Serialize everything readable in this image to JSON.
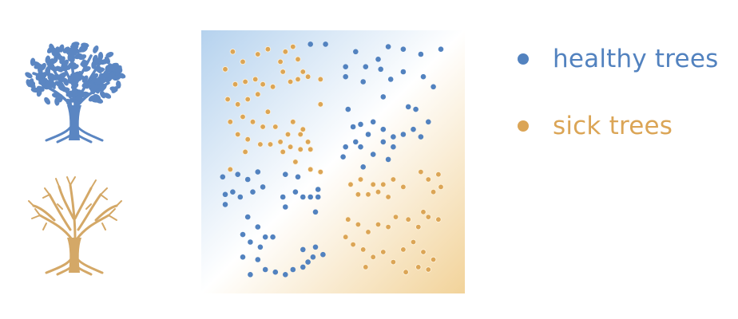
{
  "colors": {
    "healthy": "#5282bf",
    "sick": "#dba556",
    "healthy_tree": "#5b86c2",
    "sick_tree": "#d4a867",
    "bg_healthy": "#b5d2ee",
    "bg_sick": "#f2d39a"
  },
  "icons": {
    "healthy_tree": "leafy-tree-icon",
    "sick_tree": "bare-tree-icon"
  },
  "legend": [
    {
      "label": "healthy trees",
      "class": "healthy"
    },
    {
      "label": "sick trees",
      "class": "sick"
    }
  ],
  "chart_data": {
    "type": "scatter",
    "title": "",
    "xlabel": "",
    "ylabel": "",
    "xlim": [
      0,
      1
    ],
    "ylim": [
      0,
      1
    ],
    "grid": false,
    "legend_position": "right",
    "series": [
      {
        "name": "healthy trees",
        "points": [
          [
            0.41,
            0.97
          ],
          [
            0.47,
            0.97
          ],
          [
            0.55,
            0.88
          ],
          [
            0.59,
            0.94
          ],
          [
            0.62,
            0.82
          ],
          [
            0.68,
            0.91
          ],
          [
            0.72,
            0.96
          ],
          [
            0.78,
            0.95
          ],
          [
            0.85,
            0.93
          ],
          [
            0.93,
            0.95
          ],
          [
            0.55,
            0.84
          ],
          [
            0.63,
            0.88
          ],
          [
            0.69,
            0.87
          ],
          [
            0.73,
            0.83
          ],
          [
            0.78,
            0.86
          ],
          [
            0.86,
            0.84
          ],
          [
            0.9,
            0.8
          ],
          [
            0.7,
            0.76
          ],
          [
            0.8,
            0.72
          ],
          [
            0.83,
            0.71
          ],
          [
            0.56,
            0.71
          ],
          [
            0.58,
            0.64
          ],
          [
            0.61,
            0.65
          ],
          [
            0.64,
            0.61
          ],
          [
            0.66,
            0.66
          ],
          [
            0.7,
            0.63
          ],
          [
            0.74,
            0.6
          ],
          [
            0.78,
            0.61
          ],
          [
            0.82,
            0.63
          ],
          [
            0.88,
            0.66
          ],
          [
            0.55,
            0.56
          ],
          [
            0.61,
            0.56
          ],
          [
            0.66,
            0.53
          ],
          [
            0.7,
            0.58
          ],
          [
            0.74,
            0.56
          ],
          [
            0.85,
            0.6
          ],
          [
            0.54,
            0.52
          ],
          [
            0.62,
            0.48
          ],
          [
            0.59,
            0.58
          ],
          [
            0.72,
            0.51
          ],
          [
            0.06,
            0.44
          ],
          [
            0.1,
            0.38
          ],
          [
            0.12,
            0.45
          ],
          [
            0.16,
            0.43
          ],
          [
            0.2,
            0.46
          ],
          [
            0.07,
            0.37
          ],
          [
            0.13,
            0.36
          ],
          [
            0.18,
            0.38
          ],
          [
            0.22,
            0.4
          ],
          [
            0.07,
            0.33
          ],
          [
            0.31,
            0.45
          ],
          [
            0.35,
            0.38
          ],
          [
            0.38,
            0.36
          ],
          [
            0.3,
            0.36
          ],
          [
            0.41,
            0.36
          ],
          [
            0.44,
            0.36
          ],
          [
            0.44,
            0.39
          ],
          [
            0.36,
            0.44
          ],
          [
            0.31,
            0.32
          ],
          [
            0.43,
            0.3
          ],
          [
            0.16,
            0.28
          ],
          [
            0.2,
            0.24
          ],
          [
            0.14,
            0.21
          ],
          [
            0.23,
            0.2
          ],
          [
            0.17,
            0.18
          ],
          [
            0.21,
            0.16
          ],
          [
            0.26,
            0.2
          ],
          [
            0.14,
            0.12
          ],
          [
            0.2,
            0.11
          ],
          [
            0.23,
            0.07
          ],
          [
            0.27,
            0.06
          ],
          [
            0.31,
            0.05
          ],
          [
            0.34,
            0.07
          ],
          [
            0.17,
            0.05
          ],
          [
            0.38,
            0.15
          ],
          [
            0.4,
            0.1
          ],
          [
            0.42,
            0.12
          ],
          [
            0.46,
            0.13
          ],
          [
            0.38,
            0.08
          ],
          [
            0.43,
            0.16
          ]
        ]
      },
      {
        "name": "sick trees",
        "points": [
          [
            0.1,
            0.94
          ],
          [
            0.14,
            0.9
          ],
          [
            0.07,
            0.87
          ],
          [
            0.2,
            0.93
          ],
          [
            0.24,
            0.95
          ],
          [
            0.29,
            0.9
          ],
          [
            0.31,
            0.94
          ],
          [
            0.34,
            0.96
          ],
          [
            0.36,
            0.91
          ],
          [
            0.38,
            0.86
          ],
          [
            0.11,
            0.81
          ],
          [
            0.15,
            0.82
          ],
          [
            0.19,
            0.83
          ],
          [
            0.22,
            0.81
          ],
          [
            0.26,
            0.8
          ],
          [
            0.3,
            0.86
          ],
          [
            0.33,
            0.82
          ],
          [
            0.36,
            0.83
          ],
          [
            0.4,
            0.84
          ],
          [
            0.45,
            0.83
          ],
          [
            0.08,
            0.75
          ],
          [
            0.12,
            0.73
          ],
          [
            0.16,
            0.75
          ],
          [
            0.2,
            0.77
          ],
          [
            0.24,
            0.7
          ],
          [
            0.14,
            0.68
          ],
          [
            0.18,
            0.66
          ],
          [
            0.22,
            0.64
          ],
          [
            0.09,
            0.66
          ],
          [
            0.27,
            0.64
          ],
          [
            0.12,
            0.61
          ],
          [
            0.16,
            0.59
          ],
          [
            0.21,
            0.57
          ],
          [
            0.25,
            0.57
          ],
          [
            0.29,
            0.58
          ],
          [
            0.32,
            0.61
          ],
          [
            0.34,
            0.66
          ],
          [
            0.37,
            0.61
          ],
          [
            0.4,
            0.58
          ],
          [
            0.45,
            0.73
          ],
          [
            0.37,
            0.55
          ],
          [
            0.41,
            0.55
          ],
          [
            0.35,
            0.5
          ],
          [
            0.41,
            0.47
          ],
          [
            0.45,
            0.46
          ],
          [
            0.15,
            0.54
          ],
          [
            0.3,
            0.54
          ],
          [
            0.09,
            0.47
          ],
          [
            0.38,
            0.63
          ],
          [
            0.33,
            0.56
          ],
          [
            0.57,
            0.41
          ],
          [
            0.61,
            0.43
          ],
          [
            0.66,
            0.41
          ],
          [
            0.7,
            0.41
          ],
          [
            0.74,
            0.43
          ],
          [
            0.78,
            0.4
          ],
          [
            0.85,
            0.46
          ],
          [
            0.88,
            0.43
          ],
          [
            0.92,
            0.45
          ],
          [
            0.6,
            0.37
          ],
          [
            0.64,
            0.37
          ],
          [
            0.68,
            0.38
          ],
          [
            0.72,
            0.36
          ],
          [
            0.9,
            0.38
          ],
          [
            0.93,
            0.4
          ],
          [
            0.56,
            0.27
          ],
          [
            0.6,
            0.25
          ],
          [
            0.64,
            0.22
          ],
          [
            0.68,
            0.25
          ],
          [
            0.72,
            0.24
          ],
          [
            0.75,
            0.28
          ],
          [
            0.8,
            0.27
          ],
          [
            0.84,
            0.24
          ],
          [
            0.88,
            0.28
          ],
          [
            0.92,
            0.27
          ],
          [
            0.86,
            0.3
          ],
          [
            0.58,
            0.17
          ],
          [
            0.62,
            0.15
          ],
          [
            0.66,
            0.12
          ],
          [
            0.7,
            0.14
          ],
          [
            0.74,
            0.1
          ],
          [
            0.78,
            0.15
          ],
          [
            0.82,
            0.18
          ],
          [
            0.86,
            0.14
          ],
          [
            0.9,
            0.11
          ],
          [
            0.84,
            0.08
          ],
          [
            0.79,
            0.06
          ],
          [
            0.88,
            0.07
          ],
          [
            0.55,
            0.2
          ],
          [
            0.63,
            0.08
          ]
        ]
      }
    ]
  }
}
